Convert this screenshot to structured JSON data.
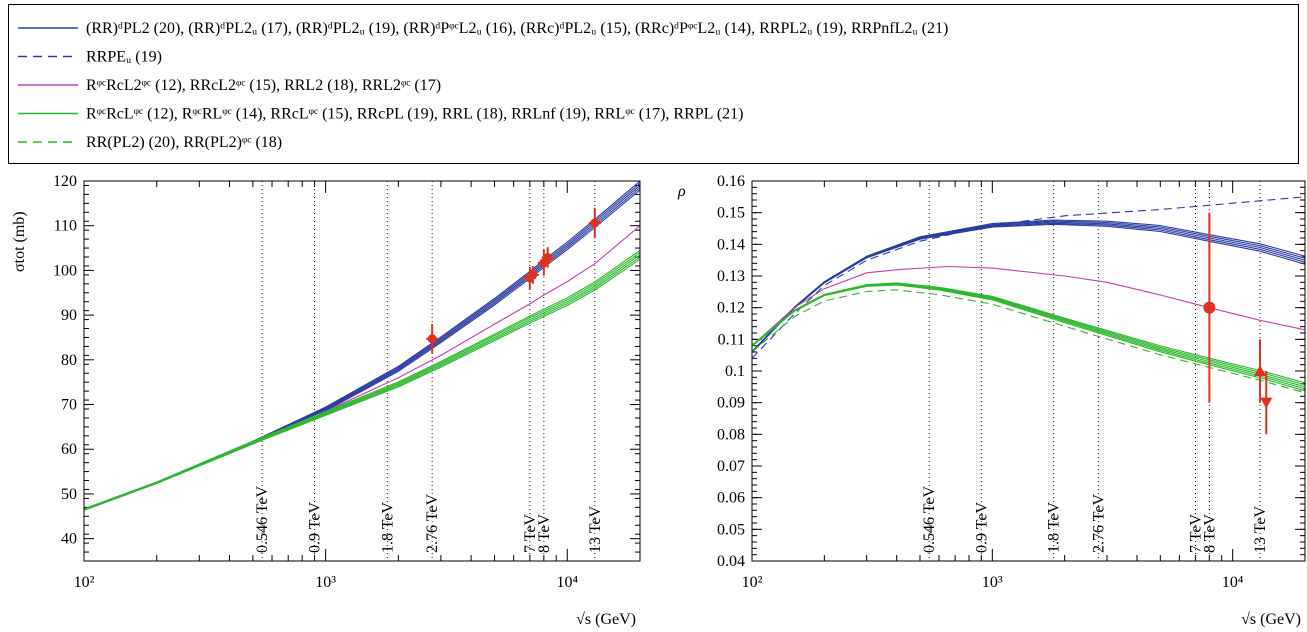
{
  "legend": [
    {
      "color": "#2b3da0",
      "dash": false,
      "text": "(RR)ᵈPL2 (20), (RR)ᵈPL2ᵤ (17), (RR)ᵈPL2ᵤ (19), (RR)ᵈPᵠᶜL2ᵤ (16), (RRc)ᵈPL2ᵤ (15), (RRc)ᵈPᵠᶜL2ᵤ (14), RRPL2ᵤ (19), RRPnfL2ᵤ (21)"
    },
    {
      "color": "#2b3da0",
      "dash": true,
      "text": "RRPEᵤ (19)"
    },
    {
      "color": "#c040b0",
      "dash": false,
      "text": "RᵠᶜRcL2ᵠᶜ (12), RRcL2ᵠᶜ (15), RRL2 (18), RRL2ᵠᶜ (17)"
    },
    {
      "color": "#2eb82e",
      "dash": false,
      "text": "RᵠᶜRcLᵠᶜ (12), RᵠᶜRLᵠᶜ (14), RRcLᵠᶜ (15), RRcPL (19), RRL (18), RRLnf (19), RRLᵠᶜ (17), RRPL (21)"
    },
    {
      "color": "#2eb82e",
      "dash": true,
      "text": "RR(PL2) (20), RR(PL2)ᵠᶜ (18)"
    }
  ],
  "colors": {
    "blue": "#2b3da0",
    "magenta": "#c040b0",
    "green": "#2eb82e",
    "data": "#e03020"
  },
  "chart_data": [
    {
      "type": "line",
      "ylabel": "σtot   (mb)",
      "xlabel": "√s    (GeV)",
      "xscale": "log",
      "xlim": [
        100,
        20000
      ],
      "ylim": [
        35,
        120
      ],
      "yticks": [
        40,
        50,
        60,
        70,
        80,
        90,
        100,
        110,
        120
      ],
      "xtick_labels": [
        "10²",
        "10³",
        "10⁴"
      ],
      "energy_markers": [
        {
          "label": "0.546 TeV",
          "x": 546
        },
        {
          "label": "0.9 TeV",
          "x": 900
        },
        {
          "label": "1.8 TeV",
          "x": 1800
        },
        {
          "label": "2.76 TeV",
          "x": 2760
        },
        {
          "label": "7 TeV",
          "x": 7000
        },
        {
          "label": "8 TeV",
          "x": 8000
        },
        {
          "label": "13 TeV",
          "x": 13000
        }
      ],
      "series": [
        {
          "group": "blue",
          "x": [
            100,
            200,
            500,
            1000,
            2000,
            3000,
            5000,
            7000,
            8000,
            10000,
            13000,
            20000
          ],
          "y": [
            46.5,
            52.5,
            61.5,
            69,
            78,
            84.5,
            93,
            99,
            101.5,
            105.5,
            110.5,
            119
          ]
        },
        {
          "group": "magenta",
          "x": [
            100,
            200,
            500,
            1000,
            2000,
            3000,
            5000,
            7000,
            8000,
            10000,
            13000,
            20000
          ],
          "y": [
            46.5,
            52.5,
            61.5,
            68.5,
            76,
            81,
            88,
            92.5,
            94.5,
            97.5,
            101.5,
            110
          ]
        },
        {
          "group": "green",
          "x": [
            100,
            200,
            500,
            1000,
            2000,
            3000,
            5000,
            7000,
            8000,
            10000,
            13000,
            20000
          ],
          "y": [
            46.5,
            52.5,
            61.5,
            68,
            74.5,
            79,
            85,
            89,
            90.5,
            93,
            96.5,
            103.5
          ]
        }
      ],
      "data_points": [
        {
          "x": 2760,
          "y": 84.7,
          "err": 3.3
        },
        {
          "x": 7000,
          "y": 98.3,
          "err": 2.5
        },
        {
          "x": 7200,
          "y": 99.0,
          "err": 2.0
        },
        {
          "x": 8000,
          "y": 101.7,
          "err": 2.9
        },
        {
          "x": 8300,
          "y": 102.9,
          "err": 2.3
        },
        {
          "x": 13000,
          "y": 110.6,
          "err": 3.4
        }
      ]
    },
    {
      "type": "line",
      "ylabel": "ρ",
      "xlabel": "√s    (GeV)",
      "xscale": "log",
      "xlim": [
        100,
        20000
      ],
      "ylim": [
        0.04,
        0.16
      ],
      "yticks": [
        0.04,
        0.05,
        0.06,
        0.07,
        0.08,
        0.09,
        0.1,
        0.11,
        0.12,
        0.13,
        0.14,
        0.15,
        0.16
      ],
      "xtick_labels": [
        "10²",
        "10³",
        "10⁴"
      ],
      "energy_markers": [
        {
          "label": "0.546 TeV",
          "x": 546
        },
        {
          "label": "0.9 TeV",
          "x": 900
        },
        {
          "label": "1.8 TeV",
          "x": 1800
        },
        {
          "label": "2.76 TeV",
          "x": 2760
        },
        {
          "label": "7 TeV",
          "x": 7000
        },
        {
          "label": "8 TeV",
          "x": 8000
        },
        {
          "label": "13 TeV",
          "x": 13000
        }
      ],
      "series": [
        {
          "group": "blue",
          "x": [
            100,
            150,
            200,
            300,
            500,
            1000,
            1800,
            3000,
            5000,
            8000,
            13000,
            20000
          ],
          "y": [
            0.106,
            0.12,
            0.128,
            0.136,
            0.142,
            0.146,
            0.147,
            0.1465,
            0.145,
            0.142,
            0.139,
            0.135
          ]
        },
        {
          "group": "blue-dashed",
          "x": [
            100,
            150,
            200,
            300,
            500,
            1000,
            2000,
            5000,
            10000,
            20000
          ],
          "y": [
            0.104,
            0.118,
            0.127,
            0.135,
            0.141,
            0.146,
            0.149,
            0.151,
            0.153,
            0.155
          ]
        },
        {
          "group": "magenta",
          "x": [
            100,
            150,
            200,
            300,
            400,
            650,
            1000,
            2000,
            3000,
            5000,
            8000,
            13000,
            20000
          ],
          "y": [
            0.108,
            0.12,
            0.126,
            0.131,
            0.132,
            0.133,
            0.1325,
            0.13,
            0.128,
            0.124,
            0.12,
            0.116,
            0.113
          ]
        },
        {
          "group": "green",
          "x": [
            100,
            150,
            200,
            300,
            400,
            600,
            1000,
            2000,
            3000,
            5000,
            8000,
            13000,
            20000
          ],
          "y": [
            0.108,
            0.119,
            0.124,
            0.127,
            0.1275,
            0.126,
            0.123,
            0.116,
            0.112,
            0.107,
            0.103,
            0.099,
            0.095
          ]
        }
      ],
      "data_points": [
        {
          "x": 8000,
          "y": 0.12,
          "err": 0.03,
          "marker": "circle"
        },
        {
          "x": 13000,
          "y": 0.1,
          "err": 0.01,
          "marker": "triangle-up"
        },
        {
          "x": 13800,
          "y": 0.09,
          "err": 0.01,
          "marker": "triangle-down"
        }
      ]
    }
  ]
}
